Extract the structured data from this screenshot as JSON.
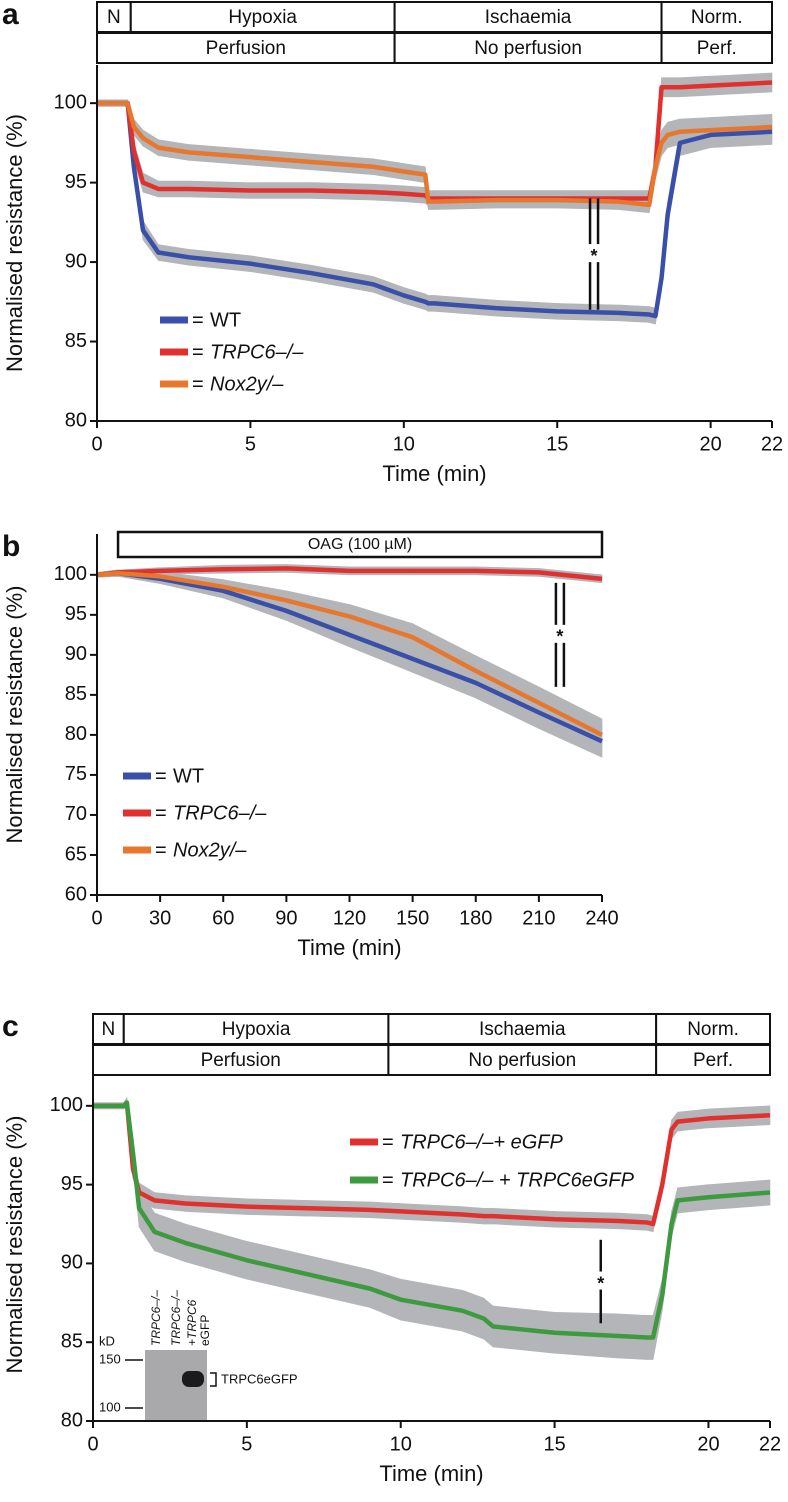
{
  "chart_data": [
    {
      "type": "line",
      "panel": "a",
      "xlabel": "Time (min)",
      "ylabel": "Normalised resistance (%)",
      "xlim": [
        0,
        22
      ],
      "xticks": [
        0,
        5,
        10,
        15,
        20,
        22
      ],
      "ylim": [
        80,
        102.4
      ],
      "yticks": [
        80,
        85,
        90,
        95,
        100
      ],
      "phases": [
        {
          "label": "N",
          "start": 0,
          "end": 1.1
        },
        {
          "label": "Hypoxia",
          "start": 1.1,
          "end": 9.7
        },
        {
          "label": "Ischaemia",
          "start": 9.7,
          "end": 18.4
        },
        {
          "label": "Norm.",
          "start": 18.4,
          "end": 22
        }
      ],
      "perfusion": [
        {
          "label": "Perfusion",
          "start": 0,
          "end": 9.7
        },
        {
          "label": "No perfusion",
          "start": 9.7,
          "end": 18.4
        },
        {
          "label": "Perf.",
          "start": 18.4,
          "end": 22
        }
      ],
      "legend_prefix": "=",
      "x": [
        0,
        1,
        1.2,
        1.5,
        2,
        3,
        5,
        7,
        9,
        10,
        10.7,
        10.8,
        11,
        13,
        15,
        17,
        18,
        18.2,
        18.4,
        18.6,
        19,
        20,
        22
      ],
      "series": [
        {
          "name": "WT",
          "color": "#3a4fa8",
          "values": [
            100,
            100,
            96,
            92,
            90.6,
            90.3,
            89.9,
            89.3,
            88.6,
            87.9,
            87.5,
            87.4,
            87.4,
            87.1,
            86.9,
            86.8,
            86.7,
            86.6,
            89,
            93,
            97.5,
            98,
            98.2
          ],
          "errors": [
            0.2,
            0.2,
            0.6,
            0.6,
            0.5,
            0.5,
            0.5,
            0.5,
            0.5,
            0.5,
            0.5,
            0.5,
            0.5,
            0.5,
            0.5,
            0.5,
            0.5,
            0.5,
            0.8,
            0.8,
            0.8,
            0.8,
            0.8
          ]
        },
        {
          "name": "TRPC6–/–",
          "color": "#e0312f",
          "values": [
            100,
            100,
            97,
            95,
            94.6,
            94.6,
            94.5,
            94.5,
            94.4,
            94.3,
            94.2,
            94,
            94,
            94,
            94,
            94,
            94,
            96,
            101,
            101,
            101,
            101.1,
            101.3
          ],
          "errors": [
            0.2,
            0.2,
            0.6,
            0.6,
            0.5,
            0.5,
            0.5,
            0.5,
            0.5,
            0.5,
            0.5,
            0.5,
            0.5,
            0.5,
            0.5,
            0.5,
            0.5,
            0.6,
            0.6,
            0.6,
            0.6,
            0.6,
            0.6
          ]
        },
        {
          "name": "Nox2y/–",
          "color": "#e8772e",
          "values": [
            100,
            100,
            98.5,
            97.8,
            97.2,
            96.9,
            96.6,
            96.3,
            96,
            95.7,
            95.5,
            93.8,
            93.8,
            93.9,
            93.9,
            93.8,
            93.6,
            96,
            97.5,
            98,
            98.2,
            98.3,
            98.5
          ],
          "errors": [
            0.2,
            0.2,
            0.5,
            0.5,
            0.5,
            0.5,
            0.5,
            0.5,
            0.5,
            0.5,
            0.5,
            0.5,
            0.5,
            0.5,
            0.5,
            0.5,
            0.5,
            0.8,
            0.8,
            0.8,
            0.8,
            0.8,
            0.8
          ]
        }
      ],
      "annotations": [
        {
          "label": "*",
          "x": 16.2,
          "y1": 94,
          "y2": 87,
          "double": true
        }
      ]
    },
    {
      "type": "line",
      "panel": "b",
      "xlabel": "Time (min)",
      "ylabel": "Normalised resistance (%)",
      "xlim": [
        0,
        240
      ],
      "xticks": [
        0,
        30,
        60,
        90,
        120,
        150,
        180,
        210,
        240
      ],
      "ylim": [
        60,
        105.1
      ],
      "yticks": [
        60,
        65,
        70,
        75,
        80,
        85,
        90,
        95,
        100
      ],
      "treatment": {
        "label": "OAG (100 µM)",
        "start": 10,
        "end": 240
      },
      "legend_prefix": "=",
      "x": [
        0,
        10,
        30,
        60,
        90,
        120,
        150,
        180,
        210,
        240
      ],
      "series": [
        {
          "name": "WT",
          "color": "#3a4fa8",
          "values": [
            100,
            100.2,
            99.5,
            98,
            95.5,
            92.5,
            89.5,
            86.5,
            82.8,
            79.2
          ],
          "errors": [
            0.3,
            0.4,
            0.6,
            0.9,
            1.2,
            1.5,
            1.7,
            1.9,
            2,
            2
          ]
        },
        {
          "name": "TRPC6–/–",
          "color": "#e0312f",
          "values": [
            100,
            100.3,
            100.5,
            100.7,
            100.8,
            100.5,
            100.5,
            100.5,
            100.3,
            99.5
          ],
          "errors": [
            0.3,
            0.3,
            0.4,
            0.5,
            0.5,
            0.5,
            0.5,
            0.5,
            0.5,
            0.5
          ]
        },
        {
          "name": "Nox2y/–",
          "color": "#e8772e",
          "values": [
            100,
            100.2,
            99.8,
            98.5,
            96.8,
            94.8,
            92.2,
            88,
            84,
            80
          ],
          "errors": [
            0.3,
            0.4,
            0.6,
            0.9,
            1.2,
            1.5,
            1.7,
            1.9,
            2,
            2
          ]
        }
      ],
      "annotations": [
        {
          "label": "*",
          "x": 220,
          "y1": 99,
          "y2": 86,
          "double": true
        }
      ]
    },
    {
      "type": "line",
      "panel": "c",
      "xlabel": "Time (min)",
      "ylabel": "Normalised resistance (%)",
      "xlim": [
        0,
        22
      ],
      "xticks": [
        0,
        5,
        10,
        15,
        20,
        22
      ],
      "ylim": [
        80,
        102.4
      ],
      "yticks": [
        80,
        85,
        90,
        95,
        100
      ],
      "phases": [
        {
          "label": "N",
          "start": 0,
          "end": 1
        },
        {
          "label": "Hypoxia",
          "start": 1,
          "end": 9.6
        },
        {
          "label": "Ischaemia",
          "start": 9.6,
          "end": 18.3
        },
        {
          "label": "Norm.",
          "start": 18.3,
          "end": 22
        }
      ],
      "perfusion": [
        {
          "label": "Perfusion",
          "start": 0,
          "end": 9.6
        },
        {
          "label": "No perfusion",
          "start": 9.6,
          "end": 18.3
        },
        {
          "label": "Perf.",
          "start": 18.3,
          "end": 22
        }
      ],
      "legend_prefix": "=",
      "x": [
        0,
        1,
        1.1,
        1.3,
        1.5,
        2,
        3,
        5,
        7,
        9,
        10,
        12,
        12.7,
        13,
        15,
        17,
        18,
        18.2,
        18.5,
        18.8,
        19,
        20,
        22
      ],
      "series": [
        {
          "name": "TRPC6–/–+ eGFP",
          "color": "#e0312f",
          "values": [
            100,
            100,
            100.2,
            96,
            94.5,
            94,
            93.8,
            93.6,
            93.5,
            93.4,
            93.3,
            93.1,
            93,
            93,
            92.8,
            92.7,
            92.6,
            92.5,
            95,
            98.5,
            99,
            99.2,
            99.4
          ],
          "errors": [
            0.2,
            0.2,
            0.3,
            0.6,
            0.6,
            0.5,
            0.5,
            0.5,
            0.5,
            0.5,
            0.5,
            0.5,
            0.5,
            0.5,
            0.5,
            0.5,
            0.5,
            0.5,
            0.6,
            0.6,
            0.6,
            0.6,
            0.6
          ]
        },
        {
          "name": "TRPC6–/– + TRPC6eGFP",
          "color": "#3e9a3e",
          "values": [
            100,
            100,
            100.2,
            97,
            93.5,
            92,
            91.3,
            90.2,
            89.3,
            88.4,
            87.7,
            87,
            86.5,
            86,
            85.6,
            85.4,
            85.3,
            85.3,
            88,
            92.5,
            94,
            94.2,
            94.5
          ],
          "errors": [
            0.2,
            0.2,
            0.3,
            1,
            1.2,
            1.2,
            1.2,
            1.2,
            1.2,
            1.2,
            1.3,
            1.3,
            1.3,
            1.3,
            1.3,
            1.4,
            1.4,
            1.4,
            1,
            0.8,
            0.8,
            0.8,
            0.8
          ]
        }
      ],
      "annotations": [
        {
          "label": "*",
          "x": 16.5,
          "y1": 91.5,
          "y2": 86.2,
          "double": false
        }
      ],
      "inset": {
        "unit_label": "kD",
        "ticks": [
          150,
          100
        ],
        "lanes": [
          "TRPC6–/–",
          "TRPC6–/–",
          "+TRPC6",
          "eGFP"
        ],
        "band_label": "TRPC6eGFP"
      }
    }
  ]
}
